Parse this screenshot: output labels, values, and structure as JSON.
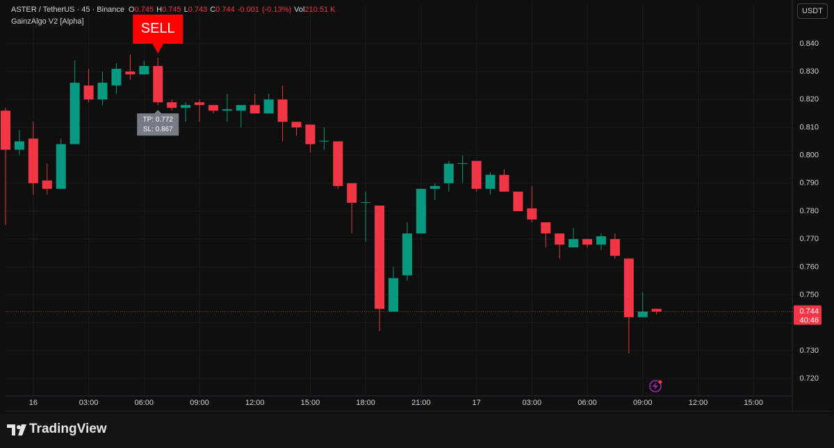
{
  "chart_data": {
    "type": "candlestick",
    "title": "ASTER / TetherUS · 45 · Binance",
    "indicator": "GainzAlgo V2 [Alpha]",
    "currency": "USDT",
    "brand": "TradingView",
    "legend": {
      "ohlc": [
        {
          "label": "O",
          "value": 0.745
        },
        {
          "label": "H",
          "value": 0.745
        },
        {
          "label": "L",
          "value": 0.743
        },
        {
          "label": "C",
          "value": 0.744
        }
      ],
      "change": -0.001,
      "change_pct": {
        "value": -0.13,
        "label": "(-0.13%)"
      },
      "volume_label": "Vol",
      "volume": {
        "value": 210510,
        "label": "210.51 K"
      }
    },
    "up_color": "#089981",
    "down_color": "#f23645",
    "x": [
      -1.5,
      -0.75,
      0,
      0.75,
      1.5,
      2.25,
      3,
      3.75,
      4.5,
      5.25,
      6,
      6.75,
      7.5,
      8.25,
      9,
      9.75,
      10.5,
      11.25,
      12,
      12.75,
      13.5,
      14.25,
      15,
      15.75,
      16.5,
      17.25,
      18,
      18.75,
      19.5,
      20.25,
      21,
      21.75,
      22.5,
      23.25,
      24,
      24.75,
      25.5,
      26.25,
      27,
      27.75,
      28.5,
      29.25,
      30,
      30.75,
      31.5,
      32.25,
      33,
      33.75
    ],
    "open": [
      0.816,
      0.802,
      0.806,
      0.791,
      0.788,
      0.804,
      0.825,
      0.82,
      0.825,
      0.83,
      0.829,
      0.832,
      0.819,
      0.817,
      0.819,
      0.818,
      0.816,
      0.816,
      0.818,
      0.815,
      0.82,
      0.812,
      0.811,
      0.805,
      0.805,
      0.79,
      0.783,
      0.782,
      0.744,
      0.757,
      0.772,
      0.788,
      0.79,
      0.797,
      0.798,
      0.788,
      0.793,
      0.787,
      0.781,
      0.776,
      0.772,
      0.767,
      0.77,
      0.768,
      0.77,
      0.763,
      0.742,
      0.745
    ],
    "high": [
      0.817,
      0.809,
      0.812,
      0.797,
      0.806,
      0.834,
      0.831,
      0.83,
      0.833,
      0.836,
      0.834,
      0.835,
      0.82,
      0.819,
      0.82,
      0.818,
      0.822,
      0.818,
      0.822,
      0.822,
      0.825,
      0.812,
      0.811,
      0.81,
      0.805,
      0.79,
      0.787,
      0.782,
      0.76,
      0.776,
      0.788,
      0.79,
      0.798,
      0.8,
      0.798,
      0.794,
      0.795,
      0.787,
      0.789,
      0.776,
      0.772,
      0.774,
      0.77,
      0.772,
      0.772,
      0.763,
      0.751,
      0.745
    ],
    "low": [
      0.775,
      0.8,
      0.786,
      0.786,
      0.788,
      0.804,
      0.819,
      0.818,
      0.822,
      0.827,
      0.829,
      0.818,
      0.816,
      0.812,
      0.812,
      0.815,
      0.812,
      0.81,
      0.815,
      0.815,
      0.805,
      0.807,
      0.801,
      0.802,
      0.788,
      0.772,
      0.769,
      0.737,
      0.744,
      0.755,
      0.772,
      0.784,
      0.787,
      0.79,
      0.787,
      0.786,
      0.787,
      0.78,
      0.776,
      0.767,
      0.763,
      0.767,
      0.767,
      0.766,
      0.763,
      0.729,
      0.742,
      0.743
    ],
    "close": [
      0.802,
      0.805,
      0.79,
      0.788,
      0.804,
      0.826,
      0.82,
      0.826,
      0.831,
      0.829,
      0.832,
      0.819,
      0.817,
      0.818,
      0.818,
      0.816,
      0.8165,
      0.818,
      0.815,
      0.82,
      0.812,
      0.81,
      0.804,
      0.8052,
      0.789,
      0.783,
      0.7832,
      0.745,
      0.756,
      0.772,
      0.788,
      0.789,
      0.797,
      0.7972,
      0.788,
      0.793,
      0.787,
      0.78,
      0.777,
      0.772,
      0.768,
      0.77,
      0.768,
      0.771,
      0.764,
      0.742,
      0.744,
      0.744
    ],
    "xlim": [
      -1.5,
      41.1
    ],
    "xticks": [
      {
        "value": 0,
        "label": "16"
      },
      {
        "value": 3,
        "label": "03:00"
      },
      {
        "value": 6,
        "label": "06:00"
      },
      {
        "value": 9,
        "label": "09:00"
      },
      {
        "value": 12,
        "label": "12:00"
      },
      {
        "value": 15,
        "label": "15:00"
      },
      {
        "value": 18,
        "label": "18:00"
      },
      {
        "value": 21,
        "label": "21:00"
      },
      {
        "value": 24,
        "label": "17"
      },
      {
        "value": 27,
        "label": "03:00"
      },
      {
        "value": 30,
        "label": "06:00"
      },
      {
        "value": 33,
        "label": "09:00"
      },
      {
        "value": 36,
        "label": "12:00"
      },
      {
        "value": 39,
        "label": "15:00"
      }
    ],
    "ylim": [
      0.7143,
      0.8544
    ],
    "yticks": [
      {
        "value": 0.72,
        "label": "0.720"
      },
      {
        "value": 0.73,
        "label": "0.730"
      },
      {
        "value": 0.74,
        "label": "0.740"
      },
      {
        "value": 0.75,
        "label": "0.750"
      },
      {
        "value": 0.76,
        "label": "0.760"
      },
      {
        "value": 0.77,
        "label": "0.770"
      },
      {
        "value": 0.78,
        "label": "0.780"
      },
      {
        "value": 0.79,
        "label": "0.790"
      },
      {
        "value": 0.8,
        "label": "0.800"
      },
      {
        "value": 0.81,
        "label": "0.810"
      },
      {
        "value": 0.82,
        "label": "0.820"
      },
      {
        "value": 0.83,
        "label": "0.830"
      },
      {
        "value": 0.84,
        "label": "0.840"
      }
    ],
    "grid": true,
    "signal": {
      "label": "SELL",
      "x": 6.75,
      "tp": {
        "value": 0.772,
        "label": "TP: 0.772"
      },
      "sl": {
        "value": 0.867,
        "label": "SL: 0.867"
      }
    },
    "last_price": {
      "value": 0.744,
      "countdown": "40:46"
    }
  }
}
